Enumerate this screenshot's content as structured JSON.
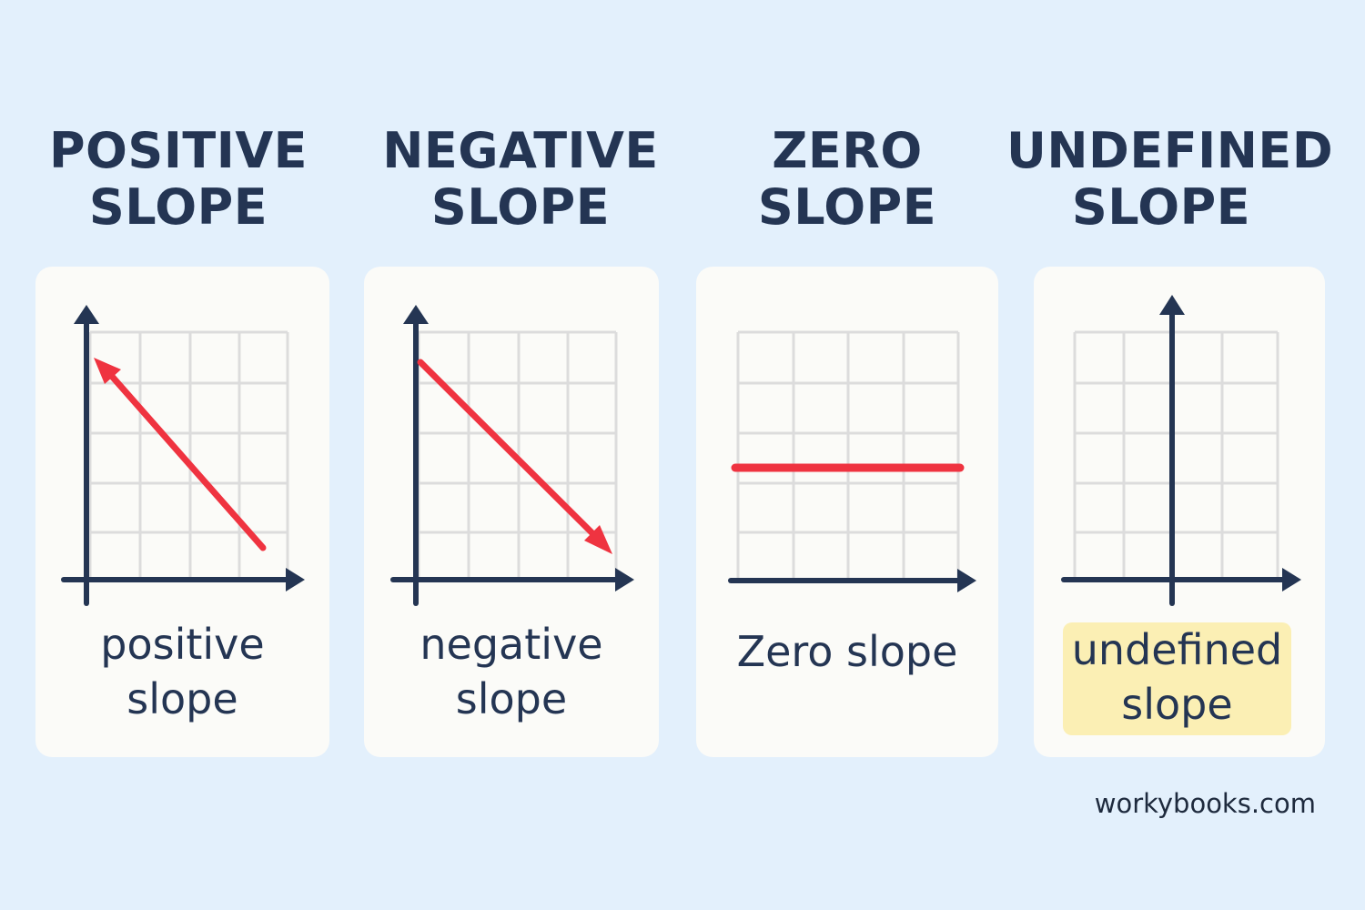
{
  "panels": [
    {
      "title_line1": "POSITIVE",
      "title_line2": "SLOPE",
      "caption_line1": "positive",
      "caption_line2": "slope"
    },
    {
      "title_line1": "NEGATIVE",
      "title_line2": "SLOPE",
      "caption_line1": "negative",
      "caption_line2": "slope"
    },
    {
      "title_line1": "ZERO",
      "title_line2": "SLOPE",
      "caption": "Zero slope"
    },
    {
      "title_line1": "UNDEFINED",
      "title_line2": "SLOPE",
      "caption_line1": "undefined",
      "caption_line2": "slope"
    }
  ],
  "footer": "workybooks.com",
  "colors": {
    "background": "#e3f0fc",
    "card": "#fbfbf8",
    "text": "#243553",
    "axis": "#243553",
    "grid": "#dcdcdc",
    "line": "#ef3340",
    "highlight": "#fbefb4"
  }
}
